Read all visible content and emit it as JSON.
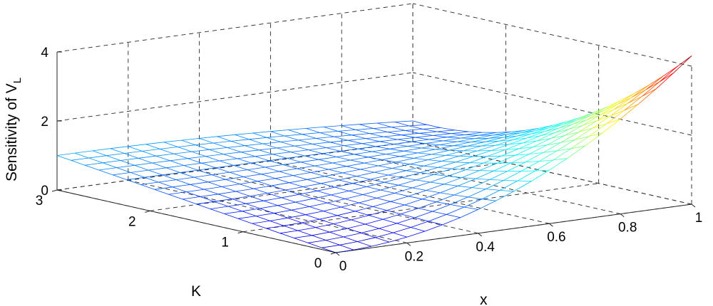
{
  "chart_data": {
    "type": "surface-mesh",
    "title": "",
    "xlabel": "x",
    "ylabel": "K",
    "zlabel": "Sensitivity of V",
    "zlabel_subscript": "L",
    "xlim": [
      0,
      1
    ],
    "ylim": [
      0,
      3
    ],
    "zlim": [
      0,
      4
    ],
    "x_ticks": [
      "0",
      "0.2",
      "0.4",
      "0.6",
      "0.8",
      "1"
    ],
    "y_ticks": [
      "0",
      "1",
      "2",
      "3"
    ],
    "z_ticks": [
      "0",
      "2",
      "4"
    ],
    "grid": true,
    "colormap": "jet",
    "mesh": {
      "x_divisions": 20,
      "y_divisions": 20
    },
    "surface_samples": [
      {
        "x": 0,
        "K": 3,
        "z": 1.0
      },
      {
        "x": 1,
        "K": 3,
        "z": 0.6
      },
      {
        "x": 0,
        "K": 0,
        "z": 0.0
      },
      {
        "x": 1,
        "K": 0,
        "z": 4.3
      }
    ]
  }
}
